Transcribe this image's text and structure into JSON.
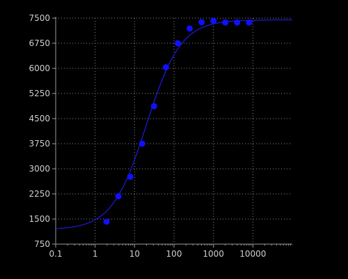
{
  "chart_data": {
    "type": "scatter",
    "title": "",
    "xlabel": "",
    "ylabel": "",
    "x_scale": "log",
    "xlim": [
      0.1,
      100000
    ],
    "ylim": [
      750,
      7500
    ],
    "x_ticks": [
      0.1,
      1,
      10,
      100,
      1000,
      10000
    ],
    "x_tick_labels": [
      "0.1",
      "1",
      "10",
      "100",
      "1000",
      "10000"
    ],
    "y_ticks": [
      750,
      1500,
      2250,
      3000,
      3750,
      4500,
      5250,
      6000,
      6750,
      7500
    ],
    "y_tick_labels": [
      "750",
      "1500",
      "2250",
      "3000",
      "3750",
      "4500",
      "5250",
      "6000",
      "6750",
      "7500"
    ],
    "grid": true,
    "legend": "none",
    "series": [
      {
        "kind": "points",
        "x": [
          1.95,
          3.9,
          7.8,
          15.6,
          31.25,
          62.5,
          125,
          250,
          500,
          1000,
          2000,
          4000,
          8000
        ],
        "y": [
          1420,
          2180,
          2760,
          3750,
          4870,
          6030,
          6750,
          7190,
          7380,
          7420,
          7370,
          7370,
          7370
        ]
      },
      {
        "kind": "fit-curve",
        "bottom": 1180,
        "top": 7450,
        "ec50": 20,
        "hill": 1.0
      }
    ],
    "colors": {
      "background": "#000000",
      "axis": "#9a9a9a",
      "grid": "#8c8c8c",
      "tick_text": "#cfcfcf",
      "points": "#1010ff",
      "curve": "#1a1ad0"
    }
  }
}
